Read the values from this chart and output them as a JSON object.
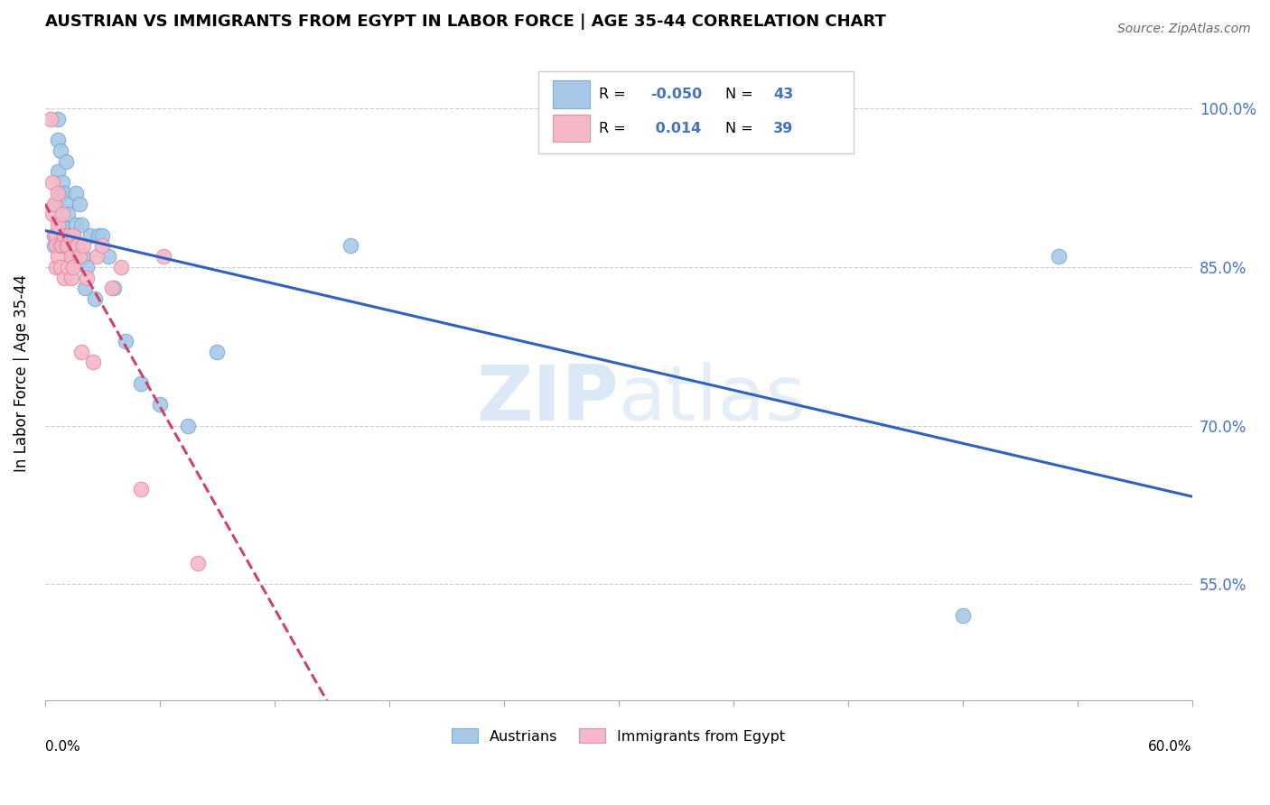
{
  "title": "AUSTRIAN VS IMMIGRANTS FROM EGYPT IN LABOR FORCE | AGE 35-44 CORRELATION CHART",
  "source": "Source: ZipAtlas.com",
  "ylabel": "In Labor Force | Age 35-44",
  "yticks": [
    "55.0%",
    "70.0%",
    "85.0%",
    "100.0%"
  ],
  "ytick_vals": [
    0.55,
    0.7,
    0.85,
    1.0
  ],
  "blue_color": "#a8c8e8",
  "pink_color": "#f4b8c8",
  "blue_edge": "#7aaed0",
  "pink_edge": "#e090a8",
  "trend_blue": "#3060c0",
  "trend_pink": "#d04070",
  "watermark_color": "#cce0f5",
  "xlim": [
    0.0,
    0.6
  ],
  "ylim": [
    0.44,
    1.06
  ],
  "austrians_x": [
    0.005,
    0.005,
    0.006,
    0.007,
    0.007,
    0.007,
    0.008,
    0.008,
    0.008,
    0.009,
    0.009,
    0.01,
    0.01,
    0.011,
    0.011,
    0.012,
    0.012,
    0.013,
    0.014,
    0.015,
    0.015,
    0.016,
    0.016,
    0.017,
    0.018,
    0.019,
    0.02,
    0.021,
    0.022,
    0.024,
    0.026,
    0.028,
    0.03,
    0.033,
    0.036,
    0.042,
    0.05,
    0.06,
    0.075,
    0.09,
    0.16,
    0.48,
    0.53
  ],
  "austrians_y": [
    0.88,
    0.87,
    0.91,
    0.99,
    0.97,
    0.94,
    0.96,
    0.92,
    0.89,
    0.93,
    0.89,
    0.92,
    0.87,
    0.95,
    0.91,
    0.9,
    0.87,
    0.88,
    0.87,
    0.88,
    0.86,
    0.92,
    0.89,
    0.87,
    0.91,
    0.89,
    0.86,
    0.83,
    0.85,
    0.88,
    0.82,
    0.88,
    0.88,
    0.86,
    0.83,
    0.78,
    0.74,
    0.72,
    0.7,
    0.77,
    0.87,
    0.52,
    0.86
  ],
  "egypt_x": [
    0.003,
    0.004,
    0.004,
    0.005,
    0.005,
    0.006,
    0.006,
    0.006,
    0.007,
    0.007,
    0.007,
    0.008,
    0.008,
    0.009,
    0.009,
    0.01,
    0.01,
    0.011,
    0.012,
    0.012,
    0.013,
    0.014,
    0.014,
    0.015,
    0.015,
    0.016,
    0.017,
    0.018,
    0.019,
    0.02,
    0.022,
    0.025,
    0.027,
    0.03,
    0.035,
    0.04,
    0.05,
    0.062,
    0.08
  ],
  "egypt_y": [
    0.99,
    0.93,
    0.9,
    0.91,
    0.88,
    0.88,
    0.87,
    0.85,
    0.92,
    0.89,
    0.86,
    0.87,
    0.85,
    0.9,
    0.87,
    0.88,
    0.84,
    0.87,
    0.87,
    0.85,
    0.88,
    0.86,
    0.84,
    0.88,
    0.85,
    0.87,
    0.87,
    0.86,
    0.77,
    0.87,
    0.84,
    0.76,
    0.86,
    0.87,
    0.83,
    0.85,
    0.64,
    0.86,
    0.57
  ]
}
